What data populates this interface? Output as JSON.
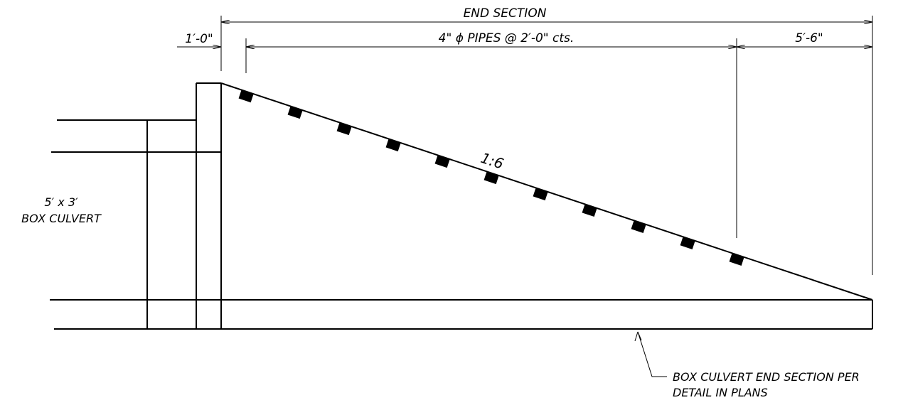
{
  "labels": {
    "end_section": "END SECTION",
    "left_offset": "1′-0\"",
    "pipes": "4\" ϕ PIPES @ 2′-0\" cts.",
    "right_offset": "5′-6\"",
    "slope": "1:6",
    "culvert_line1": "5′ x 3′",
    "culvert_line2": "BOX CULVERT",
    "note_line1": "BOX CULVERT END SECTION PER",
    "note_line2": "DETAIL IN PLANS"
  },
  "pipe_count": 11
}
